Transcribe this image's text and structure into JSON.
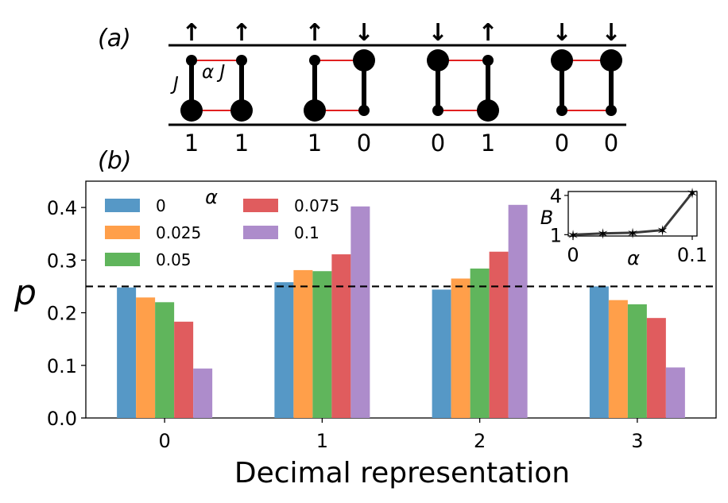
{
  "panel_a": {
    "label": "(a)",
    "coupling_vertical": "J",
    "coupling_horizontal": "α J",
    "configs": [
      {
        "arrows": [
          "↑",
          "↑"
        ],
        "bits": [
          "1",
          "1"
        ],
        "big_bottom": [
          true,
          true
        ]
      },
      {
        "arrows": [
          "↑",
          "↓"
        ],
        "bits": [
          "1",
          "0"
        ],
        "big_bottom": [
          true,
          false
        ]
      },
      {
        "arrows": [
          "↓",
          "↑"
        ],
        "bits": [
          "0",
          "1"
        ],
        "big_bottom": [
          false,
          true
        ]
      },
      {
        "arrows": [
          "↓",
          "↓"
        ],
        "bits": [
          "0",
          "0"
        ],
        "big_bottom": [
          false,
          false
        ]
      }
    ]
  },
  "panel_b": {
    "label": "(b)"
  },
  "colors": {
    "c0": "#5698c6",
    "c1": "#ff9f4a",
    "c2": "#60b55c",
    "c3": "#e05c5e",
    "c4": "#ad8ccb",
    "rung": "#dd0000"
  },
  "chart_data": [
    {
      "type": "bar",
      "categories": [
        "0",
        "1",
        "2",
        "3"
      ],
      "series": [
        {
          "name": "0",
          "values": [
            0.248,
            0.258,
            0.244,
            0.25
          ]
        },
        {
          "name": "0.025",
          "values": [
            0.229,
            0.281,
            0.265,
            0.224
          ]
        },
        {
          "name": "0.05",
          "values": [
            0.22,
            0.279,
            0.284,
            0.216
          ]
        },
        {
          "name": "0.075",
          "values": [
            0.183,
            0.311,
            0.316,
            0.19
          ]
        },
        {
          "name": "0.1",
          "values": [
            0.094,
            0.402,
            0.405,
            0.096
          ]
        }
      ],
      "xlabel": "Decimal representation",
      "ylabel": "p",
      "ylim": [
        0,
        0.45
      ],
      "yticks": [
        "0.0",
        "0.1",
        "0.2",
        "0.3",
        "0.4"
      ],
      "hline": 0.25,
      "legend_title": "α",
      "legend_position": "top-left"
    },
    {
      "type": "line",
      "x": [
        0,
        0.025,
        0.05,
        0.075,
        0.1
      ],
      "y": [
        1.0,
        1.1,
        1.15,
        1.35,
        4.2
      ],
      "xlabel": "α",
      "ylabel": "B",
      "xticks": [
        "0",
        "0.1"
      ],
      "yticks": [
        "1",
        "4"
      ],
      "xlim": [
        -0.004,
        0.104
      ],
      "ylim": [
        0.9,
        4.3
      ],
      "legend_position": "inset top-right"
    }
  ]
}
